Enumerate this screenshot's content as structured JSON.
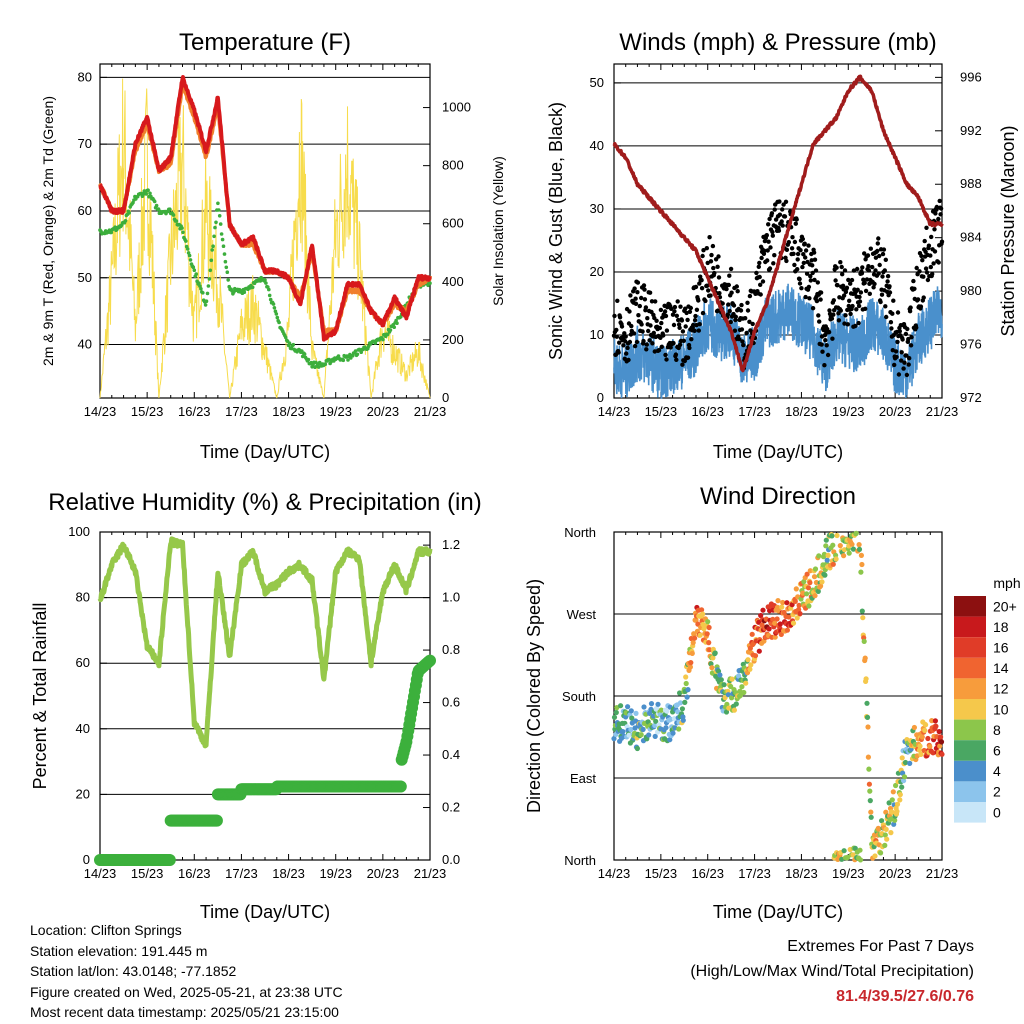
{
  "panels": {
    "temperature": {
      "title": "Temperature (F)",
      "xlabel": "Time (Day/UTC)",
      "ylabel_left": "2m & 9m T (Red, Orange) & 2m Td (Green)",
      "ylabel_right": "Solar Insolation (Yellow)"
    },
    "winds": {
      "title": "Winds (mph) & Pressure (mb)",
      "xlabel": "Time (Day/UTC)",
      "ylabel_left": "Sonic Wind & Gust (Blue, Black)",
      "ylabel_right": "Station Pressure (Maroon)"
    },
    "humidity": {
      "title": "Relative Humidity (%) & Precipitation (in)",
      "xlabel": "Time (Day/UTC)",
      "ylabel_left": "Percent & Total Rainfall"
    },
    "direction": {
      "title": "Wind Direction",
      "xlabel": "Time (Day/UTC)",
      "ylabel_left": "Direction (Colored By Speed)",
      "legend_title": "mph"
    }
  },
  "station": {
    "location": "Location: Clifton Springs",
    "elevation": "Station elevation: 191.445 m",
    "latlon": "Station lat/lon: 43.0148; -77.1852",
    "created": "Figure created on Wed, 2025-05-21, at 23:38 UTC",
    "latest": "Most recent data timestamp: 2025/05/21 23:15:00"
  },
  "extremes": {
    "heading": "Extremes For Past 7 Days",
    "subheading": "(High/Low/Max Wind/Total Precipitation)",
    "values": "81.4/39.5/27.6/0.76"
  },
  "colors": {
    "temp_2m": "#d7191c",
    "temp_9m": "#f07f2b",
    "dewpoint": "#3cae3c",
    "solar": "#f7dc4c",
    "wind": "#4a90cc",
    "gust": "#000000",
    "pressure": "#a01c1c",
    "rh": "#96c84a",
    "precip": "#3cb03c",
    "speed_scale": [
      "#c8e6f8",
      "#8cc4ec",
      "#4b8fcb",
      "#4aa763",
      "#8cc64b",
      "#f5c84b",
      "#f79c3c",
      "#f06430",
      "#e03c28",
      "#c8191c",
      "#8c1010"
    ]
  },
  "chart_data": [
    {
      "type": "line",
      "title": "Temperature (F)",
      "xlabel": "Time (Day/UTC)",
      "ylabel": "2m & 9m T (Red, Orange) & 2m Td (Green)",
      "y2label": "Solar Insolation (Yellow)",
      "x_ticks": [
        "14/23",
        "15/23",
        "16/23",
        "17/23",
        "18/23",
        "19/23",
        "20/23",
        "21/23"
      ],
      "ylim": [
        32,
        82
      ],
      "y_ticks": [
        40,
        50,
        60,
        70,
        80
      ],
      "y2lim": [
        0,
        1150
      ],
      "y2_ticks": [
        0,
        200,
        400,
        600,
        800,
        1000
      ],
      "x": [
        0,
        0.25,
        0.5,
        0.75,
        1,
        1.25,
        1.5,
        1.75,
        2,
        2.25,
        2.5,
        2.75,
        3,
        3.25,
        3.5,
        3.75,
        4,
        4.25,
        4.5,
        4.75,
        5,
        5.25,
        5.5,
        5.75,
        6,
        6.25,
        6.5,
        6.75,
        7
      ],
      "series": [
        {
          "name": "2m T",
          "values": [
            64,
            60,
            60,
            70,
            74,
            66,
            68,
            80,
            75,
            69,
            77,
            58,
            55,
            56,
            51,
            51,
            50,
            46,
            55,
            41,
            42,
            49,
            49,
            45,
            43,
            47,
            44,
            50,
            50
          ]
        },
        {
          "name": "9m T",
          "values": [
            64,
            60,
            60,
            69,
            73,
            66,
            67,
            79,
            74,
            68,
            76,
            58,
            55,
            55,
            51,
            51,
            50,
            47,
            54,
            42,
            42,
            48,
            48,
            45,
            43,
            46,
            45,
            49,
            50
          ]
        },
        {
          "name": "2m Td",
          "values": [
            57,
            57,
            58,
            62,
            63,
            60,
            60,
            57,
            51,
            46,
            61,
            48,
            48,
            49,
            50,
            44,
            40,
            39,
            37,
            37,
            38,
            38,
            39,
            40,
            41,
            43,
            46,
            49,
            49
          ]
        },
        {
          "name": "Solar",
          "values": [
            0,
            500,
            1100,
            300,
            1050,
            0,
            600,
            1000,
            300,
            800,
            500,
            0,
            300,
            400,
            200,
            0,
            300,
            1100,
            200,
            0,
            700,
            1000,
            600,
            0,
            300,
            200,
            100,
            200,
            0
          ]
        }
      ]
    },
    {
      "type": "line",
      "title": "Winds (mph) & Pressure (mb)",
      "xlabel": "Time (Day/UTC)",
      "ylabel": "Sonic Wind & Gust (Blue, Black)",
      "y2label": "Station Pressure (Maroon)",
      "x_ticks": [
        "14/23",
        "15/23",
        "16/23",
        "17/23",
        "18/23",
        "19/23",
        "20/23",
        "21/23"
      ],
      "ylim": [
        0,
        53
      ],
      "y_ticks": [
        0,
        10,
        20,
        30,
        40,
        50
      ],
      "y2lim": [
        972,
        997
      ],
      "y2_ticks": [
        972,
        976,
        980,
        984,
        988,
        992,
        996
      ],
      "x": [
        0,
        0.25,
        0.5,
        0.75,
        1,
        1.25,
        1.5,
        1.75,
        2,
        2.25,
        2.5,
        2.75,
        3,
        3.25,
        3.5,
        3.75,
        4,
        4.25,
        4.5,
        4.75,
        5,
        5.25,
        5.5,
        5.75,
        6,
        6.25,
        6.5,
        6.75,
        7
      ],
      "series": [
        {
          "name": "Sonic Wind",
          "values": [
            5,
            4,
            7,
            6,
            4,
            5,
            6,
            8,
            12,
            10,
            11,
            6,
            7,
            12,
            13,
            14,
            12,
            10,
            5,
            10,
            9,
            8,
            12,
            10,
            5,
            4,
            9,
            12,
            14
          ]
        },
        {
          "name": "Gust",
          "values": [
            12,
            10,
            14,
            12,
            9,
            11,
            10,
            14,
            21,
            18,
            17,
            9,
            14,
            24,
            27,
            26,
            22,
            19,
            9,
            17,
            16,
            16,
            22,
            19,
            9,
            8,
            18,
            24,
            27
          ]
        },
        {
          "name": "Station Pressure",
          "values": [
            991,
            990,
            988,
            987,
            986,
            985,
            984,
            983,
            981,
            979,
            977,
            974,
            977,
            979,
            982,
            985,
            988,
            991,
            992,
            993,
            995,
            996,
            995,
            992,
            990,
            988,
            987,
            985,
            985
          ]
        }
      ]
    },
    {
      "type": "line",
      "title": "Relative Humidity (%) & Precipitation (in)",
      "xlabel": "Time (Day/UTC)",
      "ylabel": "Percent & Total Rainfall",
      "x_ticks": [
        "14/23",
        "15/23",
        "16/23",
        "17/23",
        "18/23",
        "19/23",
        "20/23",
        "21/23"
      ],
      "ylim": [
        0,
        100
      ],
      "y_ticks": [
        0,
        20,
        40,
        60,
        80,
        100
      ],
      "y2lim": [
        0,
        1.25
      ],
      "y2_ticks": [
        0.0,
        0.2,
        0.4,
        0.6,
        0.8,
        1.0,
        1.2
      ],
      "x": [
        0,
        0.25,
        0.5,
        0.75,
        1,
        1.25,
        1.5,
        1.75,
        2,
        2.25,
        2.5,
        2.75,
        3,
        3.25,
        3.5,
        3.75,
        4,
        4.25,
        4.5,
        4.75,
        5,
        5.25,
        5.5,
        5.75,
        6,
        6.25,
        6.5,
        6.75,
        7
      ],
      "series": [
        {
          "name": "RH",
          "values": [
            79,
            90,
            96,
            88,
            65,
            60,
            97,
            96,
            42,
            35,
            88,
            62,
            90,
            94,
            82,
            84,
            88,
            90,
            85,
            55,
            88,
            94,
            92,
            60,
            82,
            90,
            82,
            94,
            94
          ]
        },
        {
          "name": "Precip",
          "values": [
            0,
            0,
            0,
            0,
            0,
            0,
            0.15,
            0.15,
            0.15,
            0.15,
            0.25,
            0.25,
            0.27,
            0.27,
            0.27,
            0.28,
            0.28,
            0.28,
            0.28,
            0.28,
            0.28,
            0.28,
            0.28,
            0.28,
            0.28,
            0.28,
            0.45,
            0.72,
            0.76
          ]
        }
      ]
    },
    {
      "type": "scatter",
      "title": "Wind Direction",
      "xlabel": "Time (Day/UTC)",
      "ylabel": "Direction (Colored By Speed)",
      "x_ticks": [
        "14/23",
        "15/23",
        "16/23",
        "17/23",
        "18/23",
        "19/23",
        "20/23",
        "21/23"
      ],
      "y_ticks": [
        "North",
        "East",
        "South",
        "West",
        "North"
      ],
      "ylim": [
        0,
        360
      ],
      "legend_title": "mph",
      "legend_labels": [
        "0",
        "2",
        "4",
        "6",
        "8",
        "10",
        "12",
        "14",
        "16",
        "18",
        "20+"
      ],
      "x": [
        0,
        0.25,
        0.5,
        0.75,
        1,
        1.25,
        1.5,
        1.75,
        2,
        2.25,
        2.5,
        2.75,
        3,
        3.25,
        3.5,
        3.75,
        4,
        4.25,
        4.5,
        4.75,
        5,
        5.25,
        5.5,
        5.75,
        6,
        6.25,
        6.5,
        6.75,
        7
      ],
      "series": [
        {
          "name": "Direction",
          "values": [
            150,
            150,
            140,
            155,
            150,
            150,
            175,
            270,
            250,
            185,
            180,
            195,
            240,
            260,
            265,
            270,
            290,
            300,
            330,
            350,
            355,
            360,
            20,
            30,
            60,
            120,
            130,
            135,
            130
          ]
        },
        {
          "name": "Speed",
          "values": [
            5,
            4,
            6,
            5,
            4,
            4,
            6,
            14,
            12,
            6,
            7,
            6,
            14,
            16,
            15,
            14,
            12,
            10,
            8,
            10,
            9,
            9,
            10,
            10,
            8,
            6,
            10,
            15,
            16
          ]
        }
      ]
    }
  ]
}
